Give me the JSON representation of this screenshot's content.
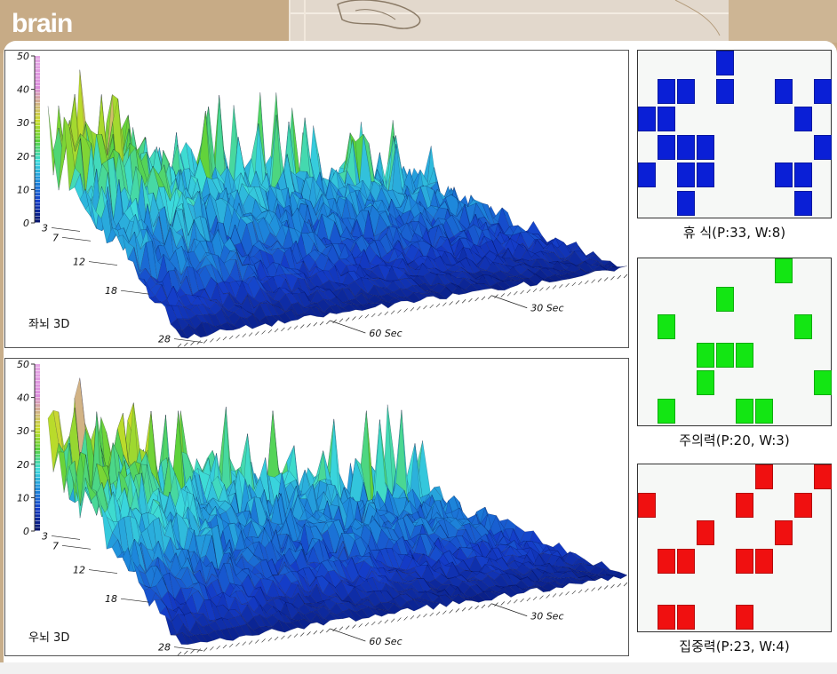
{
  "header": {
    "title": "brain"
  },
  "left_chart": {
    "label": "좌뇌 3D",
    "chart_data": {
      "type": "surface3d",
      "title": "좌뇌 3D",
      "z_ticks": [
        "50",
        "40",
        "30",
        "20",
        "10",
        "0"
      ],
      "depth_ticks": [
        "3",
        "7",
        "12",
        "18",
        "28"
      ],
      "time_ticks": [
        "30 Sec",
        "60 Sec"
      ],
      "zlim": [
        0,
        50
      ]
    }
  },
  "right_chart": {
    "label": "우뇌 3D",
    "chart_data": {
      "type": "surface3d",
      "title": "우뇌 3D",
      "z_ticks": [
        "50",
        "40",
        "30",
        "20",
        "10",
        "0"
      ],
      "depth_ticks": [
        "3",
        "7",
        "12",
        "18",
        "28"
      ],
      "time_ticks": [
        "30 Sec",
        "60 Sec"
      ],
      "zlim": [
        0,
        50
      ]
    }
  },
  "grids": [
    {
      "caption": "휴  식(P:33, W:8)",
      "color": "#0a1fd6",
      "cells": [
        [
          4,
          0
        ],
        [
          1,
          1
        ],
        [
          2,
          1
        ],
        [
          4,
          1
        ],
        [
          7,
          1
        ],
        [
          9,
          1
        ],
        [
          0,
          2
        ],
        [
          1,
          2
        ],
        [
          8,
          2
        ],
        [
          1,
          3
        ],
        [
          2,
          3
        ],
        [
          3,
          3
        ],
        [
          9,
          3
        ],
        [
          0,
          4
        ],
        [
          2,
          4
        ],
        [
          3,
          4
        ],
        [
          7,
          4
        ],
        [
          8,
          4
        ],
        [
          2,
          5
        ],
        [
          8,
          5
        ]
      ]
    },
    {
      "caption": "주의력(P:20, W:3)",
      "color": "#13e613",
      "cells": [
        [
          7,
          0
        ],
        [
          4,
          1
        ],
        [
          1,
          2
        ],
        [
          8,
          2
        ],
        [
          3,
          3
        ],
        [
          4,
          3
        ],
        [
          5,
          3
        ],
        [
          3,
          4
        ],
        [
          9,
          4
        ],
        [
          1,
          5
        ],
        [
          5,
          5
        ],
        [
          6,
          5
        ]
      ]
    },
    {
      "caption": "집중력(P:23, W:4)",
      "color": "#f01010",
      "cells": [
        [
          6,
          0
        ],
        [
          9,
          0
        ],
        [
          0,
          1
        ],
        [
          5,
          1
        ],
        [
          8,
          1
        ],
        [
          3,
          2
        ],
        [
          7,
          2
        ],
        [
          1,
          3
        ],
        [
          2,
          3
        ],
        [
          5,
          3
        ],
        [
          6,
          3
        ],
        [
          1,
          5
        ],
        [
          2,
          5
        ],
        [
          5,
          5
        ]
      ]
    }
  ]
}
